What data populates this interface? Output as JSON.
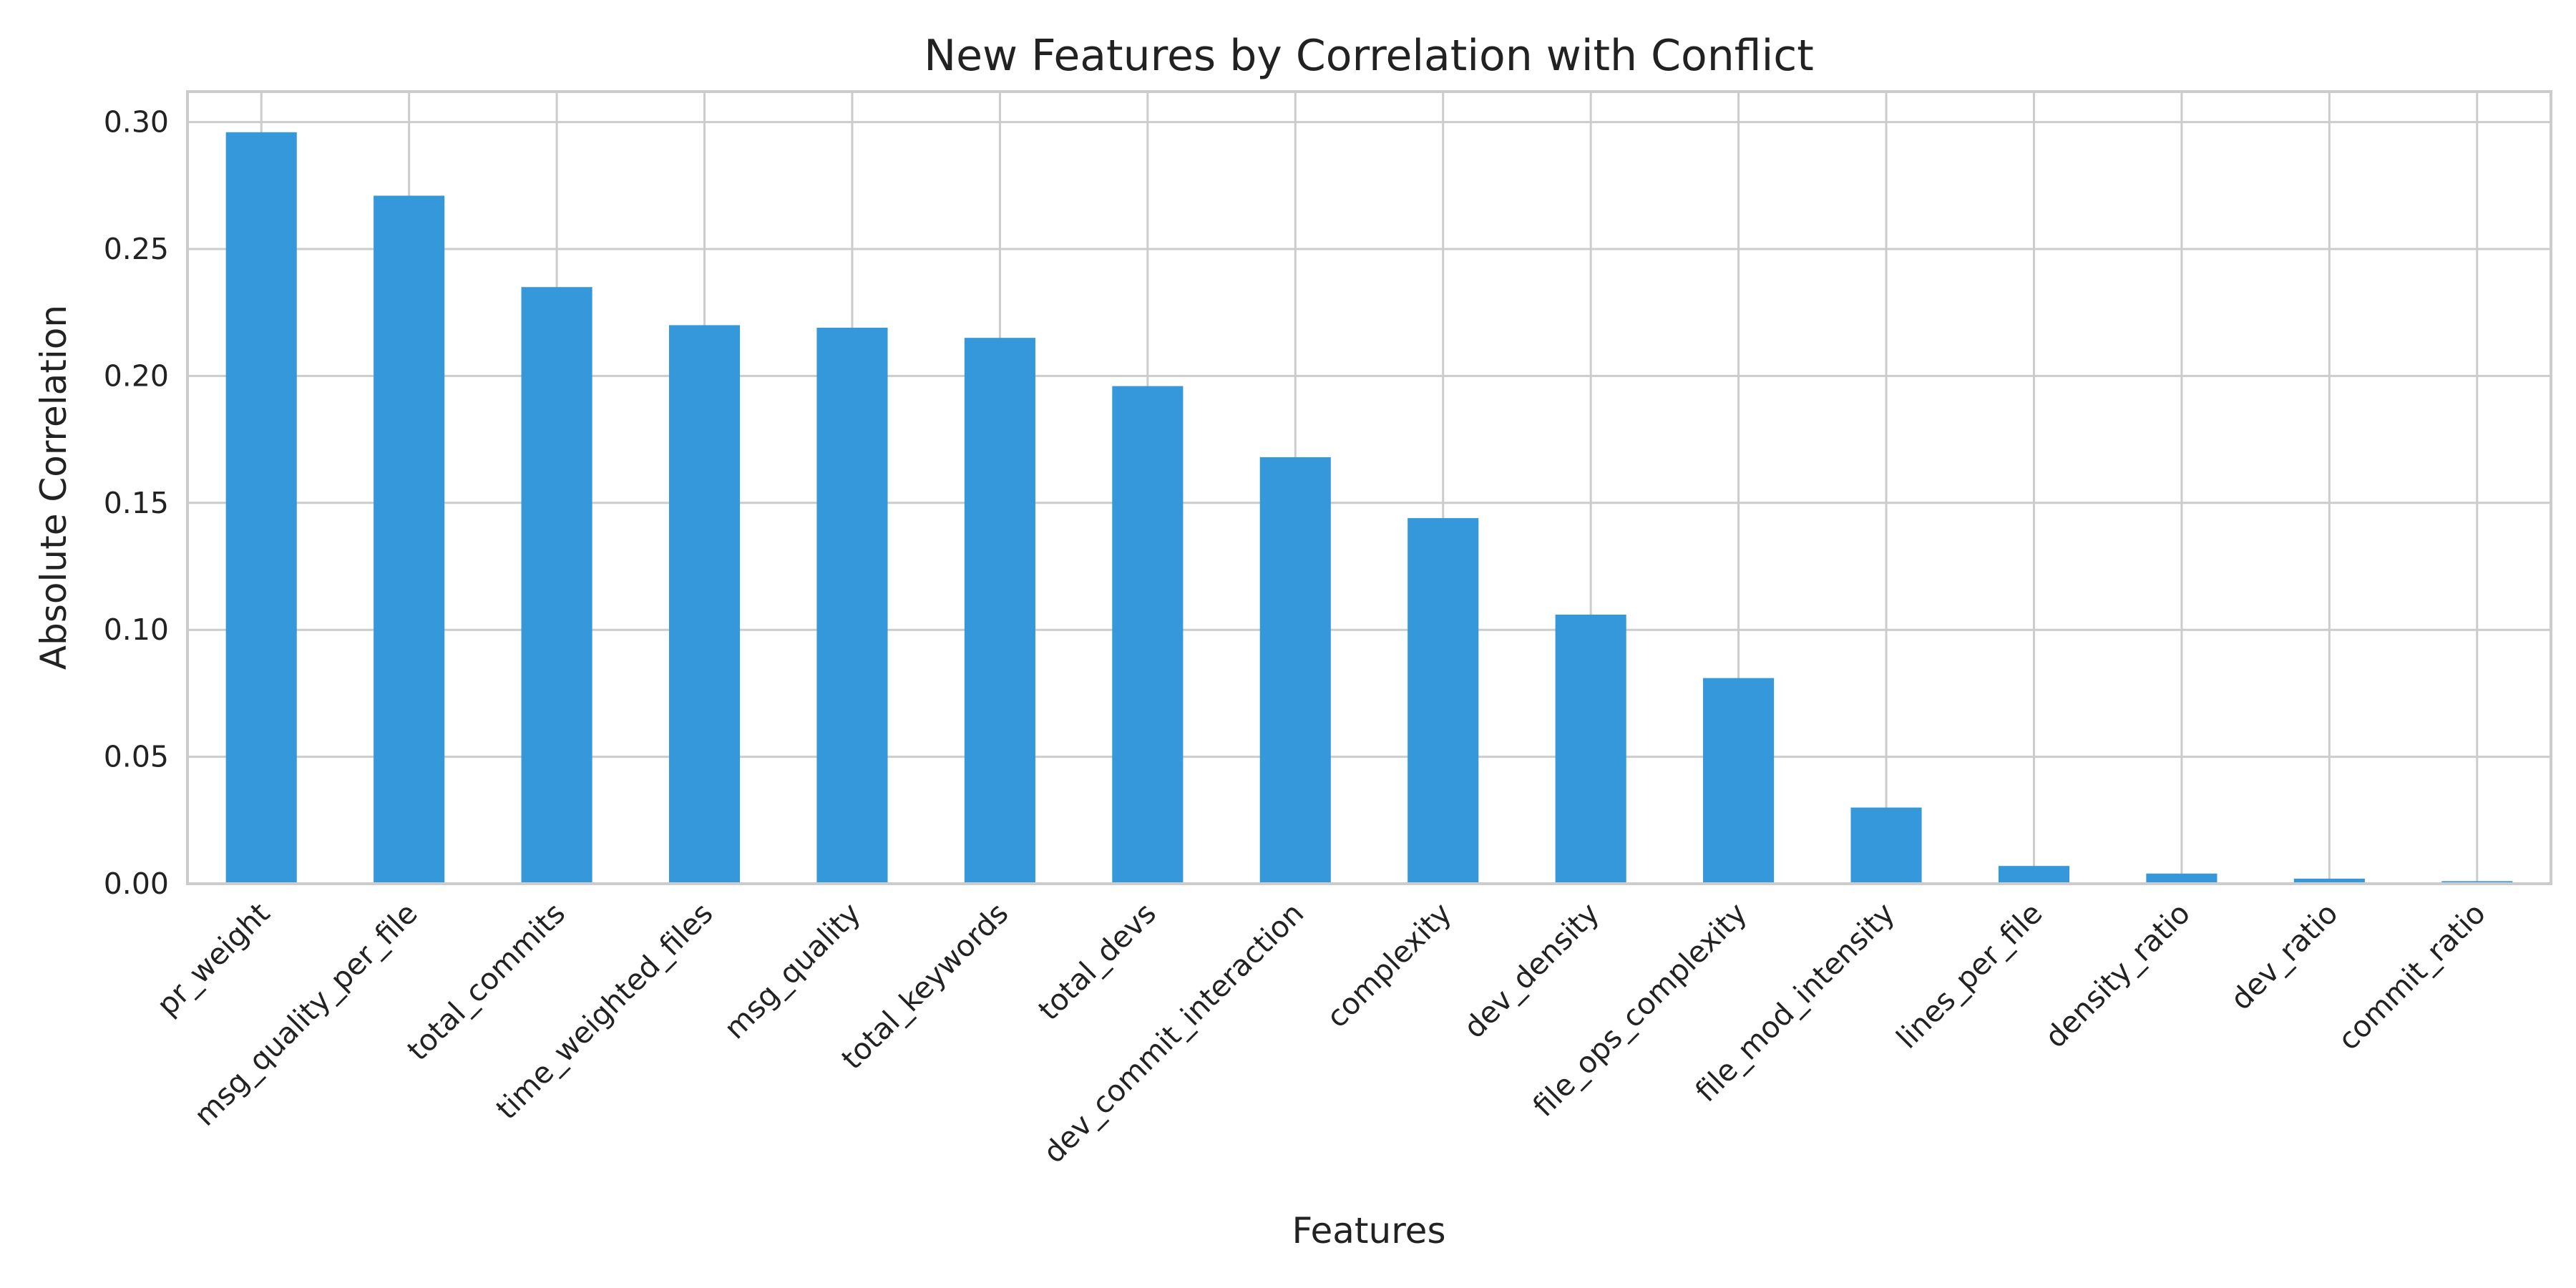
{
  "chart_data": {
    "type": "bar",
    "title": "New Features by Correlation with Conflict",
    "xlabel": "Features",
    "ylabel": "Absolute Correlation",
    "ylim": [
      0,
      0.312
    ],
    "yticks": [
      "0.00",
      "0.05",
      "0.10",
      "0.15",
      "0.20",
      "0.25",
      "0.30"
    ],
    "ytick_values": [
      0,
      0.05,
      0.1,
      0.15,
      0.2,
      0.25,
      0.3
    ],
    "categories": [
      "pr_weight",
      "msg_quality_per_file",
      "total_commits",
      "time_weighted_files",
      "msg_quality",
      "total_keywords",
      "total_devs",
      "dev_commit_interaction",
      "complexity",
      "dev_density",
      "file_ops_complexity",
      "file_mod_intensity",
      "lines_per_file",
      "density_ratio",
      "dev_ratio",
      "commit_ratio"
    ],
    "values": [
      0.296,
      0.271,
      0.235,
      0.22,
      0.219,
      0.215,
      0.196,
      0.168,
      0.144,
      0.106,
      0.081,
      0.03,
      0.007,
      0.004,
      0.002,
      0.001
    ],
    "bar_color": "#3498db",
    "grid": true,
    "legend": false
  }
}
